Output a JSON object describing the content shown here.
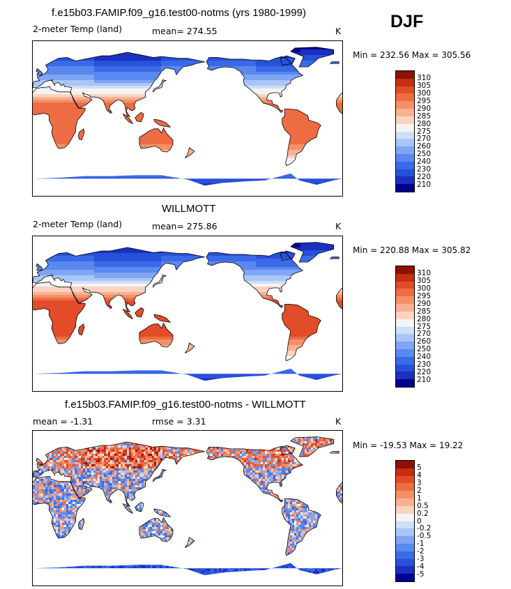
{
  "season": "DJF",
  "palettes": {
    "temp": [
      "#000090",
      "#1a30c0",
      "#2850d8",
      "#3a6ae8",
      "#5a88ee",
      "#7ea6f2",
      "#a9c6f6",
      "#cfdff9",
      "#f4f4f4",
      "#fcd3be",
      "#f8b292",
      "#f49068",
      "#ee6c44",
      "#e24c28",
      "#c42e12",
      "#8e1006"
    ],
    "diff": [
      "#000090",
      "#1a30c0",
      "#2850d8",
      "#3a6ae8",
      "#5a88ee",
      "#7ea6f2",
      "#a9c6f6",
      "#cfdff9",
      "#f4f4f4",
      "#fcd3be",
      "#f8b292",
      "#f49068",
      "#ee6c44",
      "#e24c28",
      "#c42e12",
      "#8e1006"
    ]
  },
  "panels": [
    {
      "title": "f.e15b03.FAMIP.f09_g16.test00-notms (yrs 1980-1999)",
      "left_label": "2-meter Temp (land)",
      "mid_label": "mean= 274.55",
      "units": "K",
      "minmax": "Min = 232.56 Max = 305.56",
      "colorbar_labels": [
        "310",
        "305",
        "300",
        "295",
        "290",
        "285",
        "280",
        "275",
        "270",
        "260",
        "250",
        "240",
        "230",
        "220",
        "210"
      ],
      "palette": "temp",
      "field": "model"
    },
    {
      "title": "WILLMOTT",
      "left_label": "2-meter Temp (land)",
      "mid_label": "mean= 275.86",
      "units": "K",
      "minmax": "Min = 220.88 Max = 305.82",
      "colorbar_labels": [
        "310",
        "305",
        "300",
        "295",
        "290",
        "285",
        "280",
        "275",
        "270",
        "260",
        "250",
        "240",
        "230",
        "220",
        "210"
      ],
      "palette": "temp",
      "field": "obs"
    },
    {
      "title": "f.e15b03.FAMIP.f09_g16.test00-notms - WILLMOTT",
      "left_label": "mean =   -1.31",
      "mid_label": "rmse =    3.31",
      "units": "K",
      "minmax": "Min = -19.53 Max =  19.22",
      "colorbar_labels": [
        "5",
        "4",
        "3",
        "2",
        "1",
        "0.5",
        "0.2",
        "0",
        "-0.2",
        "-0.5",
        "-1",
        "-2",
        "-3",
        "-4",
        "-5"
      ],
      "palette": "diff",
      "field": "diff"
    }
  ]
}
